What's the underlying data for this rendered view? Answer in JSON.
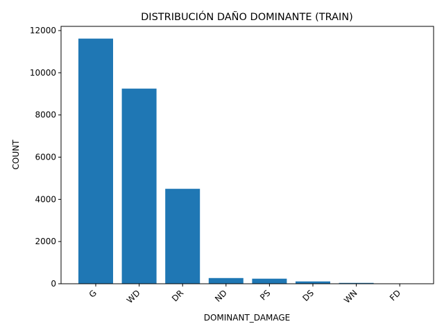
{
  "chart_data": {
    "type": "bar",
    "title": "DISTRIBUCIÓN DAÑO DOMINANTE (TRAIN)",
    "xlabel": "DOMINANT_DAMAGE",
    "ylabel": "COUNT",
    "categories": [
      "G",
      "WD",
      "DR",
      "ND",
      "PS",
      "DS",
      "WN",
      "FD"
    ],
    "values": [
      11620,
      9250,
      4500,
      270,
      240,
      110,
      40,
      5
    ],
    "ylim": [
      0,
      12200
    ],
    "yticks": [
      0,
      2000,
      4000,
      6000,
      8000,
      10000,
      12000
    ],
    "grid": false,
    "bar_color": "#1f77b4"
  }
}
